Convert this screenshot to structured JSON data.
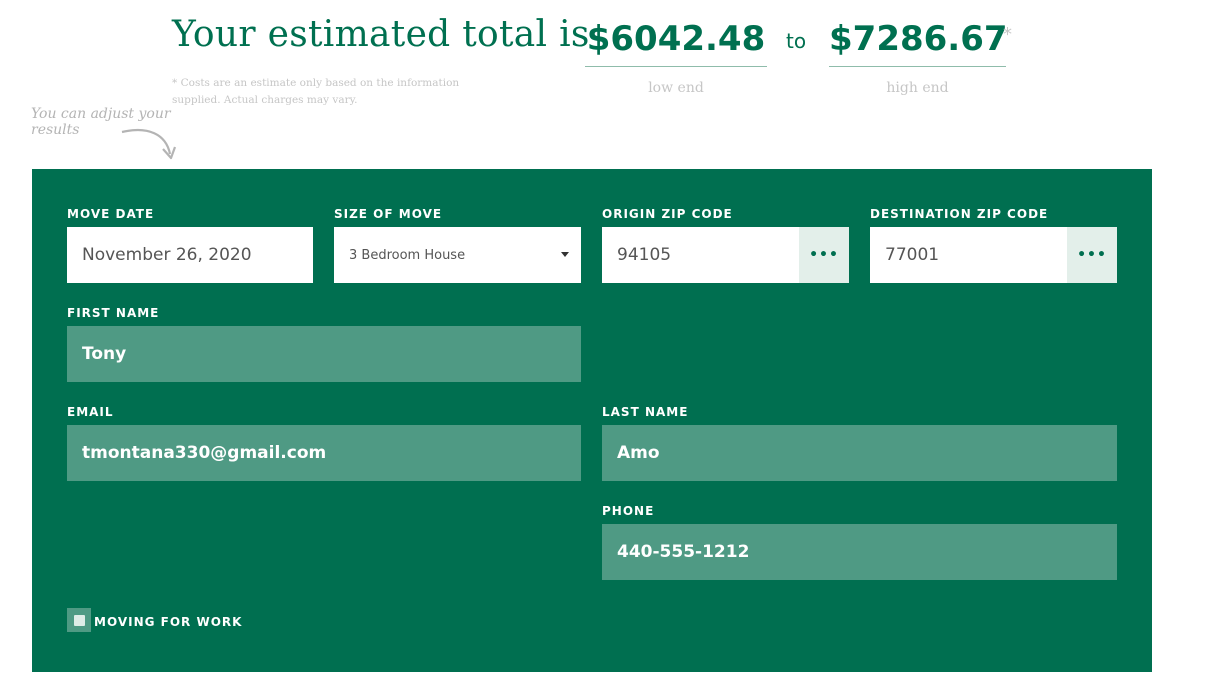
{
  "estimate": {
    "headline": "Your estimated total is",
    "low_amount": "$6042.48",
    "connector": "to",
    "high_amount": "$7286.67",
    "asterisk": "*",
    "low_caption": "low end",
    "high_caption": "high end",
    "disclaimer": "* Costs are an estimate only based on the information supplied. Actual charges may vary."
  },
  "hint": {
    "text": "You can adjust your results"
  },
  "form": {
    "move_date": {
      "label": "MOVE DATE",
      "value": "November 26, 2020"
    },
    "size_of_move": {
      "label": "SIZE OF MOVE",
      "value": "3 Bedroom House"
    },
    "origin_zip": {
      "label": "ORIGIN ZIP CODE",
      "value": "94105",
      "button": "•••"
    },
    "destination_zip": {
      "label": "DESTINATION ZIP CODE",
      "value": "77001",
      "button": "•••"
    },
    "first_name": {
      "label": "FIRST NAME",
      "value": "Tony"
    },
    "email": {
      "label": "EMAIL",
      "value": "tmontana330@gmail.com"
    },
    "last_name": {
      "label": "LAST NAME",
      "value": "Amo"
    },
    "phone": {
      "label": "PHONE",
      "value": "440-555-1212"
    },
    "moving_for_work": {
      "label": "MOVING FOR WORK",
      "checked": false
    }
  },
  "colors": {
    "brand_green": "#006f50",
    "field_tint": "#4f9a84",
    "muted_text": "#c6c6c6"
  },
  "icons": {
    "hint_arrow": "curved-arrow-down-icon",
    "select_caret": "caret-down-icon",
    "lookup_button": "ellipsis-icon"
  }
}
